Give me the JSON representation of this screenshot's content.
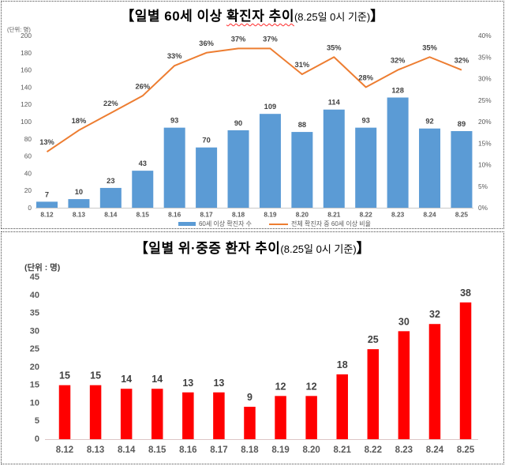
{
  "colors": {
    "bar_blue": "#5B9BD5",
    "line_orange": "#ED7D31",
    "bar_red": "#FF0000",
    "data_label": "#404040",
    "axis_label": "#595959",
    "axis_line": "#c9c9c9",
    "panel_border_dotted": "#4a4a4a",
    "title_underline_red": "#ff2a2a"
  },
  "panels": {
    "top": {
      "title_prefix": "【일별 60세 이상 ",
      "title_underlined": "확진자 추이",
      "title_sub": "(8.25일 0시 기준)",
      "title_close": "】",
      "unit_label": "(단위: 명)",
      "legend": [
        {
          "label": "60세 이상 확진자 수",
          "swatch": "blue-bar-swatch"
        },
        {
          "label": "전체 확진자 중 60세 이상 비율",
          "swatch": "orange-line-swatch"
        }
      ]
    },
    "bottom": {
      "title_prefix": "【일별 위·중증 환자 추이",
      "title_sub": "(8.25일 0시 기준)",
      "title_close": "】",
      "unit_label": "(단위 : 명)"
    }
  },
  "chart_data": [
    {
      "type": "bar",
      "subtype": "combo-bar-line",
      "title": "일별 60세 이상 확진자 추이 (8.25일 0시 기준)",
      "categories": [
        "8.12",
        "8.13",
        "8.14",
        "8.15",
        "8.16",
        "8.17",
        "8.18",
        "8.19",
        "8.20",
        "8.21",
        "8.22",
        "8.23",
        "8.24",
        "8.25"
      ],
      "series": [
        {
          "name": "60세 이상 확진자 수",
          "type": "bar",
          "axis": "left",
          "color": "#5B9BD5",
          "values": [
            7,
            10,
            23,
            43,
            93,
            70,
            90,
            109,
            88,
            114,
            93,
            128,
            92,
            89
          ]
        },
        {
          "name": "전체 확진자 중 60세 이상 비율",
          "type": "line",
          "axis": "right",
          "color": "#ED7D31",
          "unit": "%",
          "values": [
            13,
            18,
            22,
            26,
            33,
            36,
            37,
            37,
            31,
            35,
            28,
            32,
            35,
            32
          ]
        }
      ],
      "left_axis": {
        "min": 0,
        "max": 200,
        "step": 20,
        "unit_label": "(단위: 명)"
      },
      "right_axis": {
        "min": 0,
        "max": 40,
        "step": 5,
        "suffix": "%"
      },
      "grid": false,
      "legend_position": "bottom"
    },
    {
      "type": "bar",
      "title": "일별 위·중증 환자 추이 (8.25일 0시 기준)",
      "categories": [
        "8.12",
        "8.13",
        "8.14",
        "8.15",
        "8.16",
        "8.17",
        "8.18",
        "8.19",
        "8.20",
        "8.21",
        "8.22",
        "8.23",
        "8.24",
        "8.25"
      ],
      "values": [
        15,
        15,
        14,
        14,
        13,
        13,
        9,
        12,
        12,
        18,
        25,
        30,
        32,
        38
      ],
      "color": "#FF0000",
      "unit_label": "(단위 : 명)",
      "ylim": [
        0,
        45
      ],
      "ystep": 5,
      "grid": false,
      "legend_position": "none"
    }
  ]
}
